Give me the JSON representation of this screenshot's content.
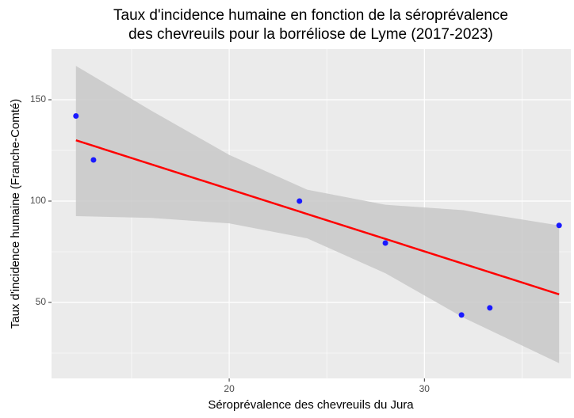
{
  "chart_data": {
    "type": "scatter",
    "title": [
      "Taux d'incidence humaine en fonction de la séroprévalence",
      "des chevreuils pour la borréliose de Lyme (2017-2023)"
    ],
    "x_label": "Séroprévalence des chevreuils du Jura",
    "y_label": "Taux d'incidence humaine (Franche-Comté)",
    "xlim": [
      10.9,
      37.5
    ],
    "ylim": [
      12.5,
      175
    ],
    "xticks": [
      20,
      30
    ],
    "yticks": [
      50,
      100,
      150
    ],
    "xminor": [
      15,
      25,
      35
    ],
    "yminor": [
      25,
      75,
      125
    ],
    "grid": true,
    "series": [
      {
        "color": "#1a1aff",
        "x": [
          12.15,
          13.05,
          23.6,
          28.0,
          31.9,
          33.35,
          36.9
        ],
        "values": [
          142,
          120.3,
          100,
          79.3,
          43.8,
          47.3,
          88
        ]
      }
    ],
    "fit": {
      "color": "#ff0000",
      "x": [
        12.15,
        36.9
      ],
      "values": [
        130,
        54
      ]
    },
    "band": {
      "color": "#c8c8c8",
      "x": [
        12.15,
        16,
        20,
        24,
        28,
        32,
        36.9
      ],
      "lower": [
        92.6,
        91.7,
        89,
        81.6,
        64.4,
        42.5,
        20
      ],
      "upper": [
        166.7,
        144.7,
        122.8,
        105.6,
        98.2,
        95.5,
        88
      ]
    }
  }
}
